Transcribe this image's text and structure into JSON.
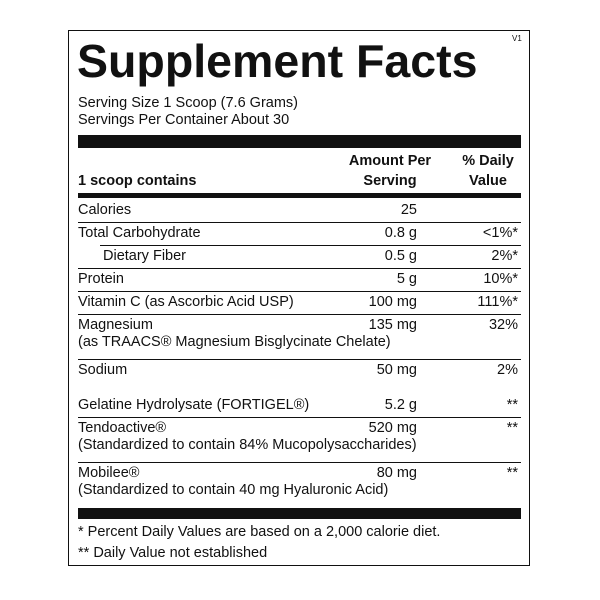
{
  "header": {
    "title": "Supplement Facts",
    "version": "V1"
  },
  "serving": {
    "size": "Serving Size 1 Scoop (7.6 Grams)",
    "servings": "Servings Per Container About 30"
  },
  "columns": {
    "contains": "1 scoop contains",
    "amount": "Amount Per Serving",
    "dv": "% Daily Value"
  },
  "sections": [
    {
      "rows": [
        {
          "name": "Calories",
          "amount": "25"
        },
        {
          "name": "Total Carbohydrate",
          "amount": "0.8 g",
          "dv": "<1%*"
        },
        {
          "name": "Dietary Fiber",
          "amount": "0.5 g",
          "dv": "2%*"
        },
        {
          "name": "Protein",
          "amount": "5 g",
          "dv": "10%*"
        },
        {
          "name": "Vitamin C (as Ascorbic Acid USP)",
          "amount": "100 mg",
          "dv": "111%*"
        },
        {
          "name": "Magnesium",
          "detail": "(as TRAACS® Magnesium Bisglycinate Chelate)",
          "amount": "135 mg",
          "dv": "32%"
        },
        {
          "name": "Sodium",
          "amount": "50 mg",
          "dv": "2%"
        }
      ]
    },
    {
      "rows": [
        {
          "name": "Gelatine Hydrolysate (FORTIGEL®)",
          "amount": "5.2 g",
          "dv": "**"
        },
        {
          "name": "Tendoactive®",
          "detail": "(Standardized to contain 84% Mucopolysaccharides)",
          "amount": "520 mg",
          "dv": "**"
        },
        {
          "name": "Mobilee®",
          "detail": "(Standardized to contain 40 mg Hyaluronic Acid)",
          "amount": "80 mg",
          "dv": "**"
        }
      ]
    }
  ],
  "footnotes": [
    "* Percent Daily Values are based on a 2,000 calorie diet.",
    "** Daily Value not established"
  ]
}
